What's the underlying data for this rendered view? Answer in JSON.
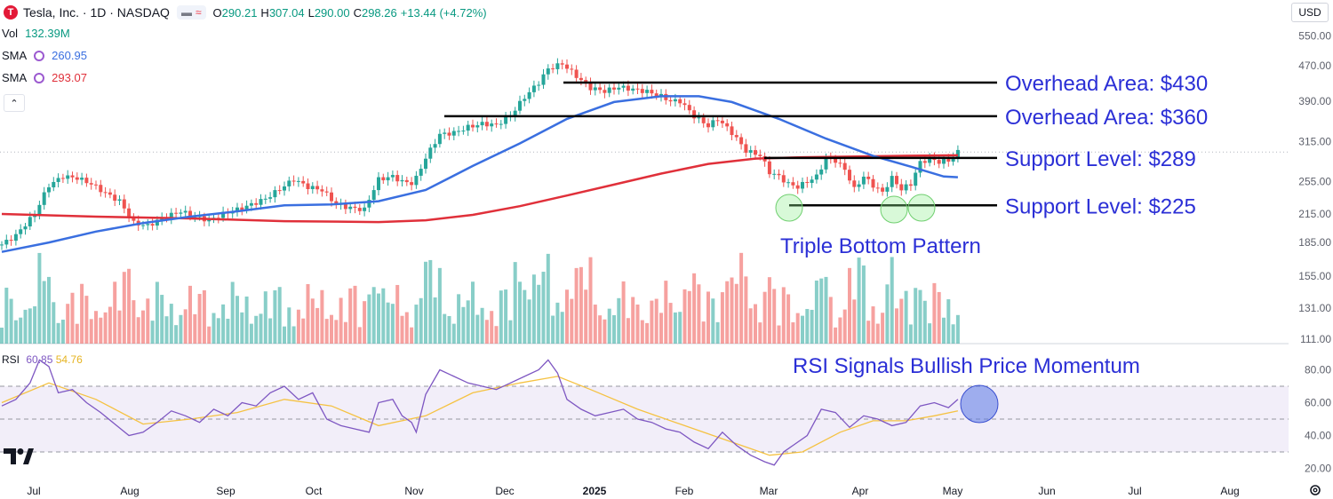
{
  "header": {
    "symbol": "Tesla, Inc. · 1D · NASDAQ",
    "logo_letter": "T",
    "open_label": "O",
    "open": "290.21",
    "high_label": "H",
    "high": "307.04",
    "low_label": "L",
    "low": "290.00",
    "close_label": "C",
    "close": "298.26",
    "change": "+13.44 (+4.72%)",
    "currency": "USD"
  },
  "indicators": {
    "vol_label": "Vol",
    "vol_value": "132.39M",
    "sma1_label": "SMA",
    "sma1_value": "260.95",
    "sma2_label": "SMA",
    "sma2_value": "293.07",
    "rsi_label": "RSI",
    "rsi_value": "60.85",
    "rsi_ma_value": "54.76"
  },
  "colors": {
    "up": "#26a69a",
    "down": "#ef5350",
    "sma_fast": "#3a6fe0",
    "sma_slow": "#e0303a",
    "annotation": "#2b2fd6",
    "rsi_line": "#7e57c2",
    "rsi_ma": "#f5c242"
  },
  "chart_data": [
    {
      "type": "candlestick",
      "series_name": "Tesla, Inc.",
      "x_axis_ticks": [
        "Jul",
        "Aug",
        "Sep",
        "Oct",
        "Nov",
        "Dec",
        "2025",
        "Feb",
        "Mar",
        "Apr",
        "May",
        "Jun",
        "Jul",
        "Aug"
      ],
      "y_axis_ticks": [
        550,
        470,
        390,
        315,
        255,
        215,
        185,
        155,
        131,
        111
      ],
      "scale": "log",
      "ylim": [
        111,
        575
      ],
      "price_path": [
        [
          0,
          183
        ],
        [
          3,
          192
        ],
        [
          7,
          215
        ],
        [
          10,
          250
        ],
        [
          13,
          262
        ],
        [
          16,
          260
        ],
        [
          19,
          252
        ],
        [
          22,
          240
        ],
        [
          25,
          230
        ],
        [
          28,
          205
        ],
        [
          31,
          202
        ],
        [
          34,
          210
        ],
        [
          38,
          218
        ],
        [
          41,
          212
        ],
        [
          44,
          208
        ],
        [
          47,
          215
        ],
        [
          50,
          220
        ],
        [
          53,
          226
        ],
        [
          56,
          233
        ],
        [
          59,
          245
        ],
        [
          62,
          258
        ],
        [
          65,
          248
        ],
        [
          68,
          244
        ],
        [
          71,
          226
        ],
        [
          74,
          222
        ],
        [
          77,
          220
        ],
        [
          80,
          258
        ],
        [
          83,
          262
        ],
        [
          85,
          255
        ],
        [
          87,
          253
        ],
        [
          88,
          260
        ],
        [
          90,
          289
        ],
        [
          93,
          327
        ],
        [
          96,
          330
        ],
        [
          99,
          340
        ],
        [
          102,
          346
        ],
        [
          105,
          344
        ],
        [
          108,
          361
        ],
        [
          111,
          398
        ],
        [
          114,
          430
        ],
        [
          116,
          462
        ],
        [
          119,
          475
        ],
        [
          121,
          455
        ],
        [
          123,
          435
        ],
        [
          125,
          418
        ],
        [
          128,
          411
        ],
        [
          131,
          420
        ],
        [
          134,
          415
        ],
        [
          137,
          410
        ],
        [
          140,
          400
        ],
        [
          142,
          390
        ],
        [
          144,
          390
        ],
        [
          147,
          360
        ],
        [
          150,
          342
        ],
        [
          152,
          355
        ],
        [
          155,
          330
        ],
        [
          158,
          300
        ],
        [
          161,
          293
        ],
        [
          163,
          268
        ],
        [
          165,
          262
        ],
        [
          167,
          252
        ],
        [
          169,
          248
        ],
        [
          171,
          255
        ],
        [
          173,
          262
        ],
        [
          175,
          288
        ],
        [
          177,
          285
        ],
        [
          179,
          272
        ],
        [
          181,
          245
        ],
        [
          183,
          262
        ],
        [
          185,
          250
        ],
        [
          187,
          241
        ],
        [
          189,
          260
        ],
        [
          191,
          245
        ],
        [
          193,
          252
        ],
        [
          195,
          282
        ],
        [
          197,
          288
        ],
        [
          199,
          283
        ],
        [
          201,
          285
        ],
        [
          203,
          298
        ]
      ],
      "sma_fast": [
        [
          0,
          176
        ],
        [
          10,
          185
        ],
        [
          20,
          196
        ],
        [
          30,
          205
        ],
        [
          40,
          212
        ],
        [
          50,
          218
        ],
        [
          60,
          225
        ],
        [
          70,
          226
        ],
        [
          80,
          230
        ],
        [
          90,
          244
        ],
        [
          100,
          277
        ],
        [
          110,
          312
        ],
        [
          120,
          355
        ],
        [
          130,
          388
        ],
        [
          140,
          400
        ],
        [
          148,
          400
        ],
        [
          155,
          388
        ],
        [
          165,
          355
        ],
        [
          175,
          320
        ],
        [
          185,
          292
        ],
        [
          193,
          276
        ],
        [
          200,
          262
        ],
        [
          203,
          261
        ]
      ],
      "sma_slow": [
        [
          0,
          215
        ],
        [
          20,
          212
        ],
        [
          40,
          210
        ],
        [
          60,
          207
        ],
        [
          80,
          206
        ],
        [
          90,
          208
        ],
        [
          100,
          214
        ],
        [
          110,
          224
        ],
        [
          120,
          237
        ],
        [
          130,
          251
        ],
        [
          140,
          266
        ],
        [
          150,
          280
        ],
        [
          160,
          288
        ],
        [
          170,
          290
        ],
        [
          180,
          291
        ],
        [
          190,
          292
        ],
        [
          203,
          293
        ]
      ],
      "levels": [
        {
          "label": "Overhead Area: $430",
          "value": 430
        },
        {
          "label": "Overhead Area: $360",
          "value": 360
        },
        {
          "label": "Support Level: $289",
          "value": 289
        },
        {
          "label": "Support Level: $225",
          "value": 225
        }
      ],
      "annotations": [
        "Triple Bottom Pattern"
      ],
      "last_price_line": 298
    },
    {
      "type": "bar",
      "series_name": "Vol",
      "description": "Daily volume bars colored by up/down day",
      "last_value": "132.39M"
    },
    {
      "type": "line",
      "series_name": "RSI",
      "y_axis_ticks": [
        80,
        60,
        40,
        20
      ],
      "ylim": [
        15,
        95
      ],
      "bands": [
        70,
        50,
        30
      ],
      "rsi_path": [
        [
          0,
          58
        ],
        [
          3,
          62
        ],
        [
          6,
          72
        ],
        [
          8,
          86
        ],
        [
          10,
          82
        ],
        [
          12,
          66
        ],
        [
          15,
          68
        ],
        [
          18,
          60
        ],
        [
          21,
          54
        ],
        [
          24,
          47
        ],
        [
          27,
          40
        ],
        [
          30,
          42
        ],
        [
          33,
          48
        ],
        [
          36,
          55
        ],
        [
          39,
          52
        ],
        [
          42,
          48
        ],
        [
          45,
          56
        ],
        [
          48,
          52
        ],
        [
          51,
          60
        ],
        [
          54,
          58
        ],
        [
          57,
          66
        ],
        [
          60,
          70
        ],
        [
          63,
          62
        ],
        [
          66,
          66
        ],
        [
          69,
          50
        ],
        [
          72,
          46
        ],
        [
          75,
          44
        ],
        [
          78,
          42
        ],
        [
          80,
          60
        ],
        [
          83,
          62
        ],
        [
          85,
          52
        ],
        [
          87,
          48
        ],
        [
          88,
          42
        ],
        [
          90,
          65
        ],
        [
          93,
          80
        ],
        [
          96,
          76
        ],
        [
          99,
          72
        ],
        [
          102,
          70
        ],
        [
          105,
          68
        ],
        [
          108,
          72
        ],
        [
          111,
          76
        ],
        [
          114,
          80
        ],
        [
          116,
          86
        ],
        [
          118,
          78
        ],
        [
          120,
          62
        ],
        [
          123,
          56
        ],
        [
          126,
          52
        ],
        [
          129,
          54
        ],
        [
          132,
          56
        ],
        [
          135,
          50
        ],
        [
          138,
          48
        ],
        [
          141,
          44
        ],
        [
          144,
          42
        ],
        [
          147,
          36
        ],
        [
          150,
          32
        ],
        [
          153,
          42
        ],
        [
          156,
          34
        ],
        [
          159,
          28
        ],
        [
          162,
          24
        ],
        [
          164,
          22
        ],
        [
          166,
          30
        ],
        [
          168,
          34
        ],
        [
          171,
          40
        ],
        [
          174,
          56
        ],
        [
          177,
          54
        ],
        [
          180,
          45
        ],
        [
          183,
          52
        ],
        [
          186,
          50
        ],
        [
          189,
          46
        ],
        [
          192,
          48
        ],
        [
          195,
          58
        ],
        [
          198,
          60
        ],
        [
          201,
          57
        ],
        [
          203,
          62
        ]
      ],
      "rsi_ma_path": [
        [
          0,
          60
        ],
        [
          10,
          72
        ],
        [
          20,
          62
        ],
        [
          30,
          47
        ],
        [
          40,
          50
        ],
        [
          50,
          54
        ],
        [
          60,
          62
        ],
        [
          70,
          58
        ],
        [
          80,
          46
        ],
        [
          90,
          52
        ],
        [
          100,
          66
        ],
        [
          110,
          72
        ],
        [
          118,
          76
        ],
        [
          125,
          68
        ],
        [
          135,
          56
        ],
        [
          145,
          46
        ],
        [
          155,
          36
        ],
        [
          163,
          28
        ],
        [
          170,
          30
        ],
        [
          178,
          42
        ],
        [
          185,
          49
        ],
        [
          192,
          49
        ],
        [
          198,
          52
        ],
        [
          203,
          55
        ]
      ],
      "annotation": "RSI Signals Bullish Price Momentum"
    }
  ]
}
